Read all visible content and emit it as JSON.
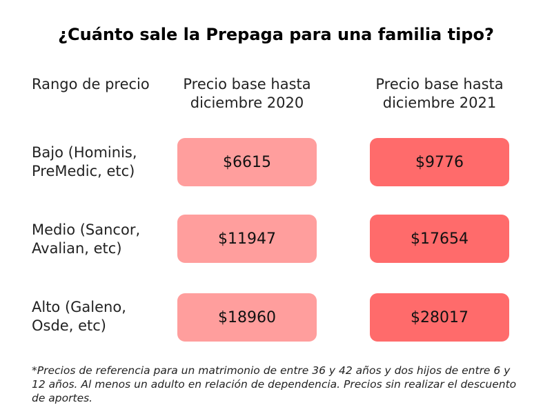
{
  "title": "¿Cuánto sale la Prepaga para una familia tipo?",
  "headers": {
    "range": "Rango de precio",
    "col_2020": "Precio base  hasta diciembre 2020",
    "col_2021": "Precio base  hasta diciembre 2021"
  },
  "rows": [
    {
      "label": "Bajo (Hominis, PreMedic, etc)",
      "price_2020": "$6615",
      "price_2021": "$9776"
    },
    {
      "label": "Medio (Sancor, Avalian, etc)",
      "price_2020": "$11947",
      "price_2021": "$17654"
    },
    {
      "label": "Alto (Galeno, Osde, etc)",
      "price_2020": "$18960",
      "price_2021": "$28017"
    }
  ],
  "footnote": "*Precios de referencia para un matrimonio de entre 36 y 42 años y dos hijos de entre 6 y 12 años. Al menos un adulto en relación de dependencia. Precios sin realizar el descuento de aportes.",
  "colors": {
    "box_2020": "#ff9e9d",
    "box_2021": "#ff6b6b"
  }
}
